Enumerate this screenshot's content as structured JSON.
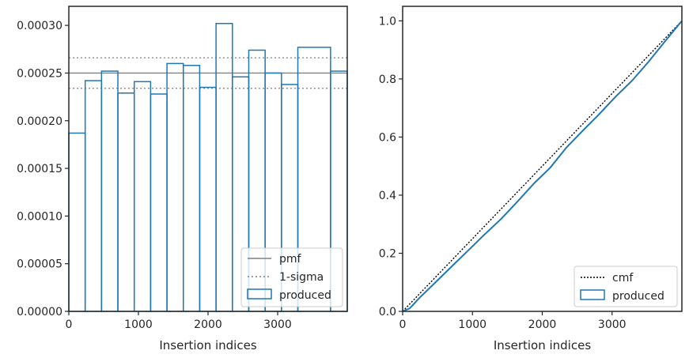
{
  "colors": {
    "produced": "#1f77b4",
    "pmf": "#808080",
    "sigma": "#808080",
    "cmf": "#000000",
    "axes": "#262626"
  },
  "chart_data": [
    {
      "type": "histogram-step",
      "xlabel": "Insertion indices",
      "xlim": [
        0,
        4000
      ],
      "ylim": [
        0,
        0.00032
      ],
      "xticks": [
        0,
        1000,
        2000,
        3000
      ],
      "xtick_labels": [
        "0",
        "1000",
        "2000",
        "3000"
      ],
      "yticks": [
        0,
        5e-05,
        0.0001,
        0.00015,
        0.0002,
        0.00025,
        0.0003
      ],
      "ytick_labels": [
        "0.00000",
        "0.00005",
        "0.00010",
        "0.00015",
        "0.00020",
        "0.00025",
        "0.00030"
      ],
      "bin_edges": [
        0,
        235,
        470,
        705,
        940,
        1175,
        1410,
        1645,
        1880,
        2115,
        2350,
        2585,
        2820,
        3055,
        3290,
        3760,
        4000
      ],
      "bin_values": [
        0.000187,
        0.000242,
        0.000252,
        0.000229,
        0.000241,
        0.000228,
        0.00026,
        0.000258,
        0.000235,
        0.000302,
        0.000246,
        0.000274,
        0.00025,
        0.000238,
        0.000277,
        0.000252
      ],
      "pmf": 0.00025,
      "sigma_upper": 0.000266,
      "sigma_lower": 0.000234,
      "legend": [
        "pmf",
        "1-sigma",
        "produced"
      ],
      "legend_loc": "lower right"
    },
    {
      "type": "line",
      "xlabel": "Insertion indices",
      "xlim": [
        0,
        4000
      ],
      "ylim": [
        0,
        1.05
      ],
      "xticks": [
        0,
        1000,
        2000,
        3000
      ],
      "xtick_labels": [
        "0",
        "1000",
        "2000",
        "3000"
      ],
      "yticks": [
        0,
        0.2,
        0.4,
        0.6,
        0.8,
        1.0
      ],
      "ytick_labels": [
        "0.0",
        "0.2",
        "0.4",
        "0.6",
        "0.8",
        "1.0"
      ],
      "cmf": [
        [
          0,
          0
        ],
        [
          4000,
          1.0
        ]
      ],
      "produced": [
        [
          0,
          0
        ],
        [
          100,
          0.01
        ],
        [
          235,
          0.045
        ],
        [
          470,
          0.1
        ],
        [
          705,
          0.155
        ],
        [
          940,
          0.21
        ],
        [
          1175,
          0.265
        ],
        [
          1410,
          0.318
        ],
        [
          1645,
          0.378
        ],
        [
          1880,
          0.44
        ],
        [
          2115,
          0.495
        ],
        [
          2350,
          0.565
        ],
        [
          2585,
          0.623
        ],
        [
          2820,
          0.68
        ],
        [
          3055,
          0.74
        ],
        [
          3290,
          0.795
        ],
        [
          3525,
          0.86
        ],
        [
          3760,
          0.93
        ],
        [
          4000,
          1.0
        ]
      ],
      "legend": [
        "cmf",
        "produced"
      ],
      "legend_loc": "lower right"
    }
  ]
}
